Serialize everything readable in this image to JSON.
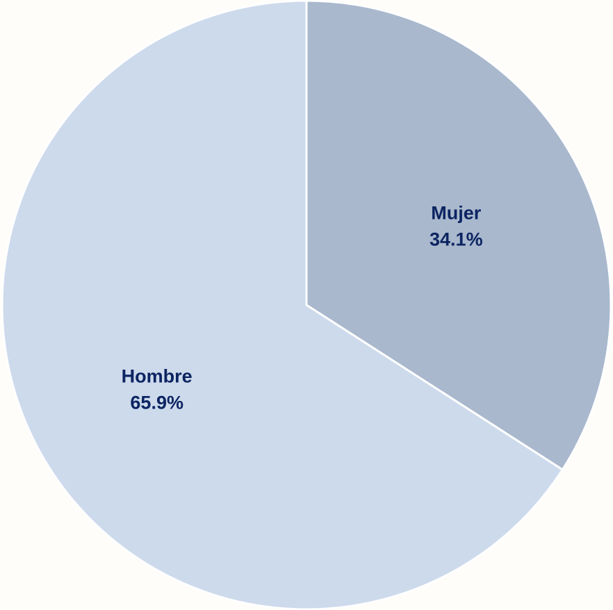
{
  "chart_data": {
    "type": "pie",
    "slices": [
      {
        "label": "Mujer",
        "value": 34.1,
        "value_label": "34.1%",
        "color": "#a9b8cd"
      },
      {
        "label": "Hombre",
        "value": 65.9,
        "value_label": "65.9%",
        "color": "#cddaec"
      }
    ],
    "start_angle": "12 o'clock",
    "direction": "clockwise",
    "label_color": "#0c2461",
    "separator_color": "#ffffff",
    "background": "#fffdf9"
  }
}
